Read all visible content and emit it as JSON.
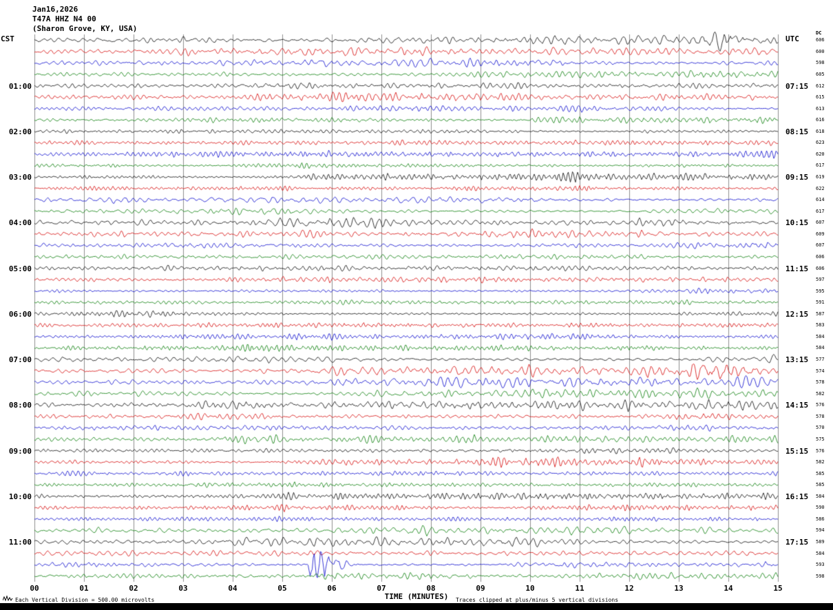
{
  "header": {
    "date": "Jan16,2026",
    "station": "T47A HHZ N4 00",
    "location": "(Sharon Grove, KY, USA)"
  },
  "axes": {
    "left_timezone": "CST",
    "right_timezone": "UTC",
    "dc_column": "DC",
    "x_label": "TIME (MINUTES)",
    "x_ticks": [
      "00",
      "01",
      "02",
      "03",
      "04",
      "05",
      "06",
      "07",
      "08",
      "09",
      "10",
      "11",
      "12",
      "13",
      "14",
      "15"
    ]
  },
  "footer": {
    "scale_note": "Each Vertical Division =  500.00 microvolts",
    "clip_note": "Traces clipped at plus/minus 5 vertical divisions"
  },
  "icons": {
    "corner_squiggle": "seismic-wiggle-mark"
  },
  "chart_data": {
    "type": "line",
    "title": "Helicorder seismogram T47A HHZ N4 00 Jan16,2026 (Sharon Grove, KY, USA)",
    "x_range_minutes": [
      0,
      15
    ],
    "minutes_per_row": 15,
    "grid_on": true,
    "grid_color": "#8c8c8c",
    "trace_colors": {
      "black": "#000000",
      "red": "#d40000",
      "blue": "#0000cc",
      "green": "#007a00"
    },
    "noise_seed": 20260116,
    "rows": [
      {
        "color": "black",
        "cst": "",
        "utc": "",
        "dc": 606
      },
      {
        "color": "red",
        "cst": "",
        "utc": "",
        "dc": 600
      },
      {
        "color": "blue",
        "cst": "",
        "utc": "",
        "dc": 598
      },
      {
        "color": "green",
        "cst": "",
        "utc": "",
        "dc": 605
      },
      {
        "color": "black",
        "cst": "01:00",
        "utc": "07:15",
        "dc": 612
      },
      {
        "color": "red",
        "cst": "",
        "utc": "",
        "dc": 615
      },
      {
        "color": "blue",
        "cst": "",
        "utc": "",
        "dc": 613
      },
      {
        "color": "green",
        "cst": "",
        "utc": "",
        "dc": 616
      },
      {
        "color": "black",
        "cst": "02:00",
        "utc": "08:15",
        "dc": 618
      },
      {
        "color": "red",
        "cst": "",
        "utc": "",
        "dc": 623
      },
      {
        "color": "blue",
        "cst": "",
        "utc": "",
        "dc": 620
      },
      {
        "color": "green",
        "cst": "",
        "utc": "",
        "dc": 617
      },
      {
        "color": "black",
        "cst": "03:00",
        "utc": "09:15",
        "dc": 619
      },
      {
        "color": "red",
        "cst": "",
        "utc": "",
        "dc": 622
      },
      {
        "color": "blue",
        "cst": "",
        "utc": "",
        "dc": 614
      },
      {
        "color": "green",
        "cst": "",
        "utc": "",
        "dc": 617
      },
      {
        "color": "black",
        "cst": "04:00",
        "utc": "10:15",
        "dc": 607
      },
      {
        "color": "red",
        "cst": "",
        "utc": "",
        "dc": 609
      },
      {
        "color": "blue",
        "cst": "",
        "utc": "",
        "dc": 607
      },
      {
        "color": "green",
        "cst": "",
        "utc": "",
        "dc": 606
      },
      {
        "color": "black",
        "cst": "05:00",
        "utc": "11:15",
        "dc": 606
      },
      {
        "color": "red",
        "cst": "",
        "utc": "",
        "dc": 597
      },
      {
        "color": "blue",
        "cst": "",
        "utc": "",
        "dc": 595
      },
      {
        "color": "green",
        "cst": "",
        "utc": "",
        "dc": 591
      },
      {
        "color": "black",
        "cst": "06:00",
        "utc": "12:15",
        "dc": 587
      },
      {
        "color": "red",
        "cst": "",
        "utc": "",
        "dc": 583
      },
      {
        "color": "blue",
        "cst": "",
        "utc": "",
        "dc": 584
      },
      {
        "color": "green",
        "cst": "",
        "utc": "",
        "dc": 584
      },
      {
        "color": "black",
        "cst": "07:00",
        "utc": "13:15",
        "dc": 577
      },
      {
        "color": "red",
        "cst": "",
        "utc": "",
        "dc": 574
      },
      {
        "color": "blue",
        "cst": "",
        "utc": "",
        "dc": 578
      },
      {
        "color": "green",
        "cst": "",
        "utc": "",
        "dc": 582
      },
      {
        "color": "black",
        "cst": "08:00",
        "utc": "14:15",
        "dc": 576
      },
      {
        "color": "red",
        "cst": "",
        "utc": "",
        "dc": 578
      },
      {
        "color": "blue",
        "cst": "",
        "utc": "",
        "dc": 570
      },
      {
        "color": "green",
        "cst": "",
        "utc": "",
        "dc": 575
      },
      {
        "color": "black",
        "cst": "09:00",
        "utc": "15:15",
        "dc": 576
      },
      {
        "color": "red",
        "cst": "",
        "utc": "",
        "dc": 582
      },
      {
        "color": "blue",
        "cst": "",
        "utc": "",
        "dc": 585
      },
      {
        "color": "green",
        "cst": "",
        "utc": "",
        "dc": 585
      },
      {
        "color": "black",
        "cst": "10:00",
        "utc": "16:15",
        "dc": 584
      },
      {
        "color": "red",
        "cst": "",
        "utc": "",
        "dc": 590
      },
      {
        "color": "blue",
        "cst": "",
        "utc": "",
        "dc": 586
      },
      {
        "color": "green",
        "cst": "",
        "utc": "",
        "dc": 594
      },
      {
        "color": "black",
        "cst": "11:00",
        "utc": "17:15",
        "dc": 589
      },
      {
        "color": "red",
        "cst": "",
        "utc": "",
        "dc": 584
      },
      {
        "color": "blue",
        "cst": "",
        "utc": "",
        "dc": 593
      },
      {
        "color": "green",
        "cst": "",
        "utc": "",
        "dc": 598
      }
    ],
    "events": [
      {
        "row": 0,
        "minute": 13.85,
        "width": 0.3,
        "amp": 5,
        "tail": 1.6
      },
      {
        "row": 29,
        "minute": 13.45,
        "width": 0.25,
        "amp": 4.5,
        "tail": 2.2
      },
      {
        "row": 46,
        "minute": 5.6,
        "width": 0.05,
        "amp": 26,
        "tail": 7
      }
    ]
  }
}
